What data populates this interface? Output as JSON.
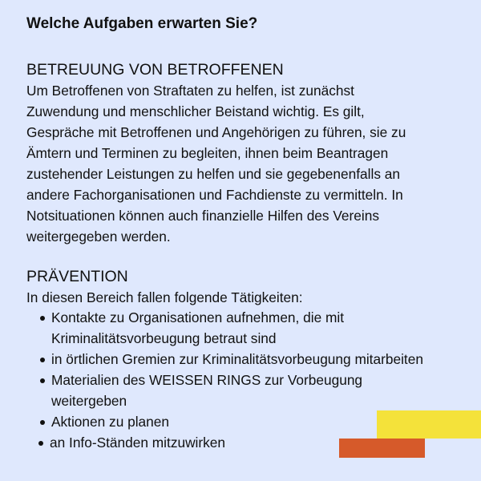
{
  "title": "Welche Aufgaben erwarten Sie?",
  "section1": {
    "heading": "BETREUUNG VON BETROFFENEN",
    "lines": [
      "Um Betroffenen von Straftaten zu helfen, ist zunächst",
      "Zuwendung und menschlicher Beistand wichtig. Es gilt,",
      "Gespräche mit Betroffenen und Angehörigen zu führen, sie zu",
      "Ämtern und Terminen zu begleiten, ihnen beim Beantragen",
      "zustehender Leistungen zu helfen und sie gegebenenfalls an",
      "andere Fachorganisationen und Fachdienste zu vermitteln. In",
      "Notsituationen können auch finanzielle Hilfen des Vereins",
      "weitergegeben werden."
    ]
  },
  "section2": {
    "heading": "PRÄVENTION",
    "intro": "In diesen Bereich fallen folgende Tätigkeiten:",
    "bullets": [
      [
        "Kontakte zu Organisationen aufnehmen, die mit",
        "Kriminalitätsvorbeugung betraut sind"
      ],
      [
        "in örtlichen Gremien zur Kriminalitätsvorbeugung mitarbeiten"
      ],
      [
        "Materialien des WEISSEN RINGS zur Vorbeugung",
        "weitergeben"
      ],
      [
        "Aktionen zu planen"
      ],
      [
        "an Info-Ständen mitzuwirken"
      ]
    ]
  },
  "colors": {
    "background": "#dfe8fd",
    "yellow_bar": "#f4e23a",
    "orange_bar": "#d65a2a"
  }
}
